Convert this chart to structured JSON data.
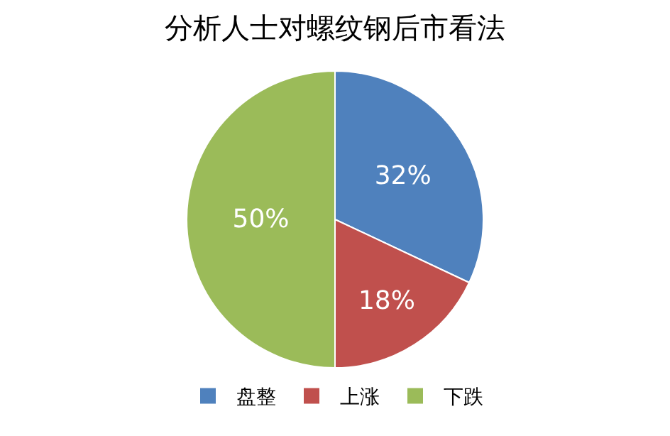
{
  "chart_data": {
    "type": "pie",
    "title": "分析人士对螺纹钢后市看法",
    "categories": [
      "盘整",
      "上涨",
      "下跌"
    ],
    "values": [
      32,
      18,
      50
    ],
    "colors": [
      "#4f81bd",
      "#c0504d",
      "#9bbb59"
    ],
    "value_labels": [
      "32%",
      "18%",
      "50%"
    ],
    "legend": "bottom"
  }
}
